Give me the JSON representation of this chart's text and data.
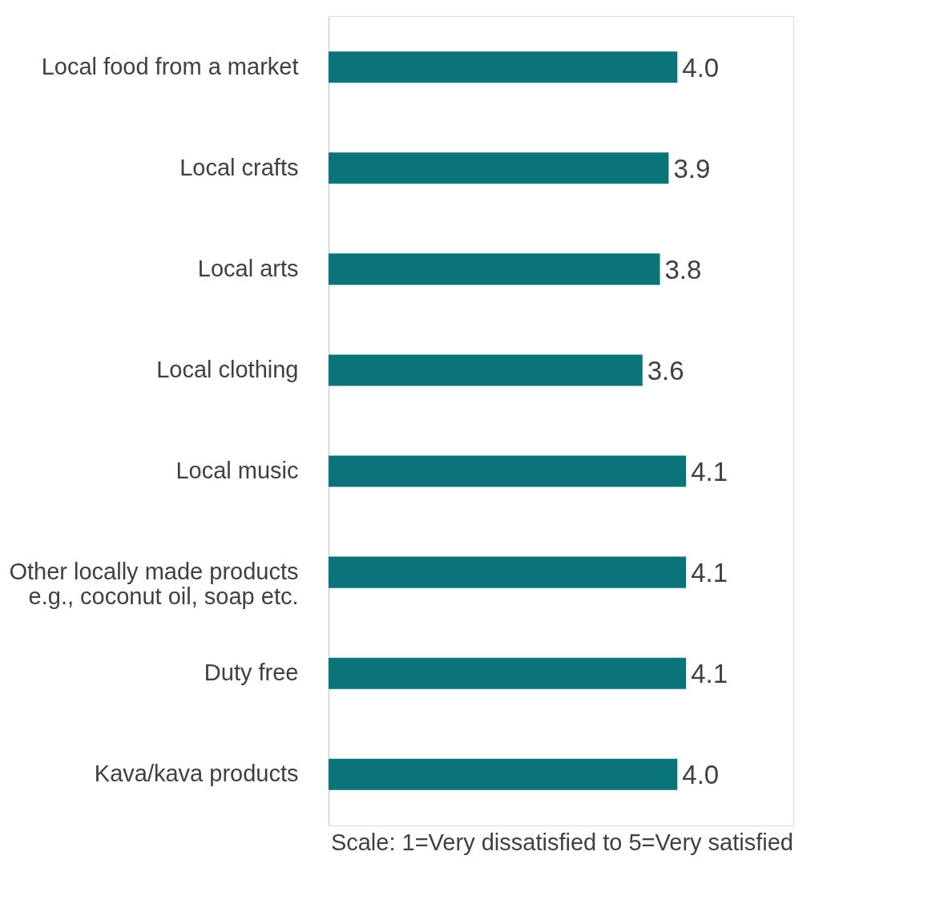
{
  "chart_data": {
    "type": "bar",
    "orientation": "horizontal",
    "categories": [
      "Local food from a market",
      "Local crafts",
      "Local arts",
      "Local clothing",
      "Local music",
      "Other locally made products e.g., coconut oil, soap etc.",
      "Duty free",
      "Kava/kava products"
    ],
    "values": [
      4.0,
      3.9,
      3.8,
      3.6,
      4.1,
      4.1,
      4.1,
      4.0
    ],
    "value_labels": [
      "4.0",
      "3.9",
      "3.8",
      "3.6",
      "4.1",
      "4.1",
      "4.1",
      "4.0"
    ],
    "color": "#0b737a",
    "grid": false,
    "annotations": [
      "Scale: 1=Very dissatisfied to 5=Very satisfied"
    ]
  }
}
